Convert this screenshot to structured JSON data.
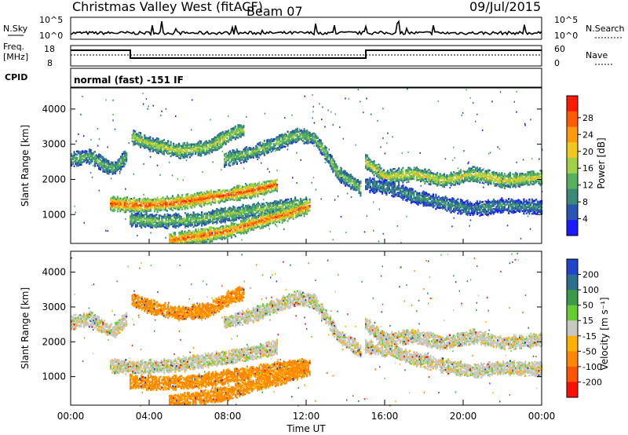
{
  "header": {
    "station": "Christmas Valley West (fitACF)",
    "beam": "Beam 07",
    "date": "09/Jul/2015"
  },
  "noise_panel": {
    "left_label": "N.Sky",
    "left_ticks": [
      "10^5",
      "10^0"
    ],
    "right_ticks": [
      "10^5",
      "10^0"
    ],
    "right_label": "N.Search"
  },
  "freq_panel": {
    "left_label_1": "Freq.",
    "left_label_2": "[MHz]",
    "left_ticks": [
      "18",
      "8"
    ],
    "right_ticks": [
      "60",
      "0"
    ],
    "right_label": "Nave"
  },
  "cpid": {
    "label": "CPID",
    "value": "normal (fast) -151 IF"
  },
  "chart_data": [
    {
      "type": "heatmap",
      "panel": "power",
      "ylabel": "Slant Range [km]",
      "y_ticks": [
        "1000",
        "2000",
        "3000",
        "4000"
      ],
      "y_tick_values": [
        1000,
        2000,
        3000,
        4000
      ],
      "ylim": [
        180,
        4600
      ],
      "xlim_hours": [
        0,
        24
      ],
      "colorbar": {
        "label": "Power [dB]",
        "ticks": [
          "4",
          "8",
          "12",
          "16",
          "20",
          "24",
          "28"
        ],
        "colors": [
          "#1a1aff",
          "#2a55b5",
          "#3a8a7a",
          "#55b060",
          "#a0d048",
          "#f0c820",
          "#ff9a10",
          "#ff5a00",
          "#ff1a00"
        ]
      },
      "bands": [
        {
          "name": "far-left-upper",
          "points": [
            [
              0.0,
              2550
            ],
            [
              1.0,
              2650
            ],
            [
              1.8,
              2350
            ],
            [
              2.2,
              2300
            ],
            [
              2.8,
              2650
            ]
          ],
          "value": 12
        },
        {
          "name": "upper-arc",
          "points": [
            [
              3.1,
              3200
            ],
            [
              4.0,
              3000
            ],
            [
              5.5,
              2800
            ],
            [
              7.0,
              2900
            ],
            [
              8.2,
              3300
            ],
            [
              8.8,
              3400
            ]
          ],
          "value": 16
        },
        {
          "name": "rising-ridge",
          "points": [
            [
              7.8,
              2550
            ],
            [
              9.2,
              2750
            ],
            [
              10.6,
              3050
            ],
            [
              11.5,
              3250
            ],
            [
              12.4,
              3150
            ],
            [
              13.0,
              2700
            ],
            [
              13.6,
              2150
            ],
            [
              14.2,
              1950
            ],
            [
              14.8,
              1700
            ]
          ],
          "value": 14
        },
        {
          "name": "main-band",
          "points": [
            [
              2.0,
              1300
            ],
            [
              3.5,
              1250
            ],
            [
              5.0,
              1300
            ],
            [
              6.5,
              1420
            ],
            [
              8.0,
              1550
            ],
            [
              9.5,
              1700
            ],
            [
              10.5,
              1850
            ]
          ],
          "value": 26
        },
        {
          "name": "lower-tilt",
          "points": [
            [
              3.0,
              850
            ],
            [
              4.5,
              800
            ],
            [
              6.5,
              850
            ],
            [
              8.0,
              1000
            ],
            [
              9.8,
              1150
            ],
            [
              11.0,
              1250
            ],
            [
              12.0,
              1300
            ]
          ],
          "value": 14
        },
        {
          "name": "bottom-red",
          "points": [
            [
              5.0,
              260
            ],
            [
              6.5,
              380
            ],
            [
              8.0,
              520
            ],
            [
              9.5,
              780
            ],
            [
              11.0,
              1000
            ],
            [
              12.2,
              1250
            ]
          ],
          "value": 25
        },
        {
          "name": "right-upper",
          "points": [
            [
              15.0,
              2500
            ],
            [
              16.0,
              2050
            ],
            [
              17.5,
              2150
            ],
            [
              19.0,
              1950
            ],
            [
              20.5,
              2150
            ],
            [
              22.0,
              1950
            ],
            [
              24.0,
              2050
            ]
          ],
          "value": 18
        },
        {
          "name": "right-lower",
          "points": [
            [
              15.0,
              1850
            ],
            [
              16.2,
              1750
            ],
            [
              17.5,
              1500
            ],
            [
              19.0,
              1300
            ],
            [
              20.5,
              1150
            ],
            [
              22.0,
              1250
            ],
            [
              24.0,
              1200
            ]
          ],
          "value": 9
        }
      ]
    },
    {
      "type": "heatmap",
      "panel": "velocity",
      "ylabel": "Slant Range [km]",
      "y_ticks": [
        "1000",
        "2000",
        "3000",
        "4000"
      ],
      "y_tick_values": [
        1000,
        2000,
        3000,
        4000
      ],
      "ylim": [
        180,
        4600
      ],
      "xlabel": "Time UT",
      "x_ticks": [
        "00:00",
        "04:00",
        "08:00",
        "12:00",
        "16:00",
        "20:00",
        "00:00"
      ],
      "x_tick_hours": [
        0,
        4,
        8,
        12,
        16,
        20,
        24
      ],
      "colorbar": {
        "label": "Velocity [m s⁻¹]",
        "ticks": [
          "200",
          "100",
          "50",
          "15",
          "-15",
          "-50",
          "-100",
          "-200"
        ],
        "colors": [
          "#2244cc",
          "#2d6e8c",
          "#3a9a4a",
          "#66cc33",
          "#c8c8c0",
          "#ffb000",
          "#ff8800",
          "#ff5500",
          "#ff1100"
        ]
      },
      "bands": [
        {
          "name": "far-left-upper",
          "points": [
            [
              0.0,
              2550
            ],
            [
              1.0,
              2650
            ],
            [
              1.8,
              2350
            ],
            [
              2.2,
              2300
            ],
            [
              2.8,
              2650
            ]
          ],
          "value": 0
        },
        {
          "name": "upper-arc",
          "points": [
            [
              3.1,
              3200
            ],
            [
              4.0,
              3000
            ],
            [
              5.5,
              2800
            ],
            [
              7.0,
              2900
            ],
            [
              8.2,
              3300
            ],
            [
              8.8,
              3400
            ]
          ],
          "value": -60
        },
        {
          "name": "rising-ridge",
          "points": [
            [
              7.8,
              2550
            ],
            [
              9.2,
              2750
            ],
            [
              10.6,
              3050
            ],
            [
              11.5,
              3250
            ],
            [
              12.4,
              3150
            ],
            [
              13.0,
              2700
            ],
            [
              13.6,
              2150
            ],
            [
              14.2,
              1950
            ],
            [
              14.8,
              1700
            ]
          ],
          "value": 0
        },
        {
          "name": "main-band",
          "points": [
            [
              2.0,
              1300
            ],
            [
              3.5,
              1250
            ],
            [
              5.0,
              1300
            ],
            [
              6.5,
              1420
            ],
            [
              8.0,
              1550
            ],
            [
              9.5,
              1700
            ],
            [
              10.5,
              1850
            ]
          ],
          "value": 0
        },
        {
          "name": "lower-tilt",
          "points": [
            [
              3.0,
              850
            ],
            [
              4.5,
              800
            ],
            [
              6.5,
              850
            ],
            [
              8.0,
              1000
            ],
            [
              9.8,
              1150
            ],
            [
              11.0,
              1250
            ],
            [
              12.0,
              1300
            ]
          ],
          "value": -60
        },
        {
          "name": "bottom-red",
          "points": [
            [
              5.0,
              260
            ],
            [
              6.5,
              380
            ],
            [
              8.0,
              520
            ],
            [
              9.5,
              780
            ],
            [
              11.0,
              1000
            ],
            [
              12.2,
              1250
            ]
          ],
          "value": -60
        },
        {
          "name": "right-upper",
          "points": [
            [
              15.0,
              2500
            ],
            [
              16.0,
              2050
            ],
            [
              17.5,
              2150
            ],
            [
              19.0,
              1950
            ],
            [
              20.5,
              2150
            ],
            [
              22.0,
              1950
            ],
            [
              24.0,
              2050
            ]
          ],
          "value": 0
        },
        {
          "name": "right-lower",
          "points": [
            [
              15.0,
              1850
            ],
            [
              16.2,
              1750
            ],
            [
              17.5,
              1500
            ],
            [
              19.0,
              1300
            ],
            [
              20.5,
              1150
            ],
            [
              22.0,
              1250
            ],
            [
              24.0,
              1200
            ]
          ],
          "value": 0
        }
      ]
    }
  ]
}
